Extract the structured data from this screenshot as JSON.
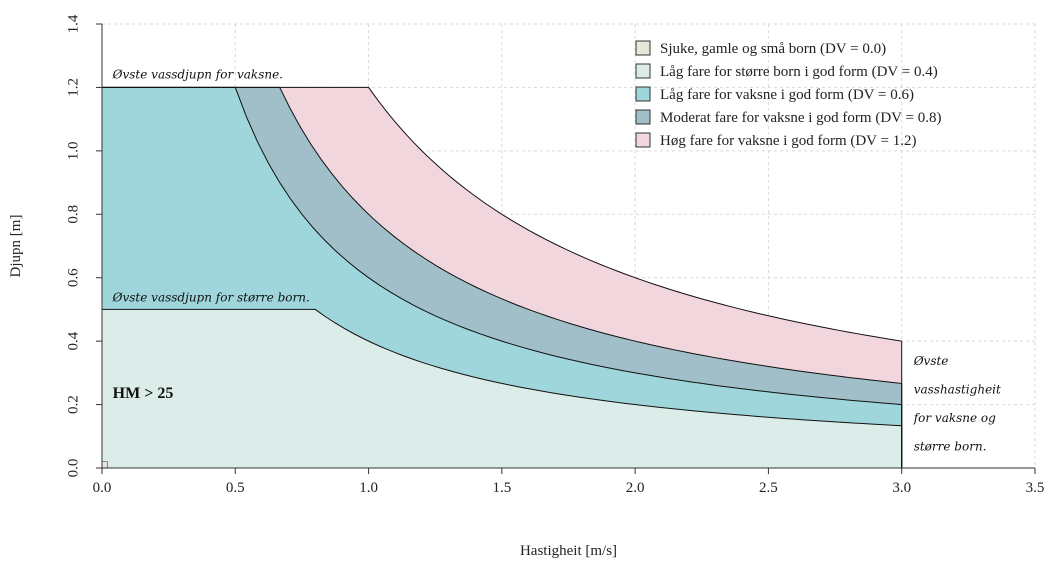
{
  "chart_data": {
    "type": "area",
    "title": "",
    "xlabel": "Hastigheit [m/s]",
    "ylabel": "Djupn [m]",
    "xlim": [
      0,
      3.5
    ],
    "ylim": [
      0,
      1.4
    ],
    "xticks": [
      "0.0",
      "0.5",
      "1.0",
      "1.5",
      "2.0",
      "2.5",
      "3.0",
      "3.5"
    ],
    "yticks": [
      "0.0",
      "0.2",
      "0.4",
      "0.6",
      "0.8",
      "1.0",
      "1.2",
      "1.4"
    ],
    "grid": true,
    "legend_position": "top-right",
    "series": [
      {
        "name": "Sjuke, gamle og små born (DV = 0.0)",
        "dv": 0.0,
        "color": "#e8e8d8",
        "boundary": {
          "type": "rect",
          "x_max": 0.02,
          "y_max": 0.02
        }
      },
      {
        "name": "Låg fare for større born i god form (DV = 0.4)",
        "dv": 0.4,
        "color": "#dcece9",
        "boundary": {
          "type": "dv_curve",
          "y_max": 0.5,
          "x_max": 3.0
        }
      },
      {
        "name": "Låg fare for vaksne i god form (DV = 0.6)",
        "dv": 0.6,
        "color": "#9fd6dc",
        "boundary": {
          "type": "dv_curve",
          "y_max": 1.2,
          "x_max": 3.0
        }
      },
      {
        "name": "Moderat fare for vaksne i god form (DV = 0.8)",
        "dv": 0.8,
        "color": "#a0bfc8",
        "boundary": {
          "type": "dv_curve",
          "y_max": 1.2,
          "x_max": 3.0
        }
      },
      {
        "name": "Høg fare for vaksne i god form (DV = 1.2)",
        "dv": 1.2,
        "color": "#f2d6de",
        "boundary": {
          "type": "dv_curve",
          "y_max": 1.2,
          "x_max": 3.0
        }
      }
    ],
    "annotations": {
      "adult_depth": "Øvste vassdjupn for vaksne.",
      "child_depth": "Øvste vassdjupn for større born.",
      "hm": "HM > 25",
      "velocity": [
        "Øvste",
        "vasshastigheit",
        "for vaksne og",
        "større born."
      ]
    }
  }
}
